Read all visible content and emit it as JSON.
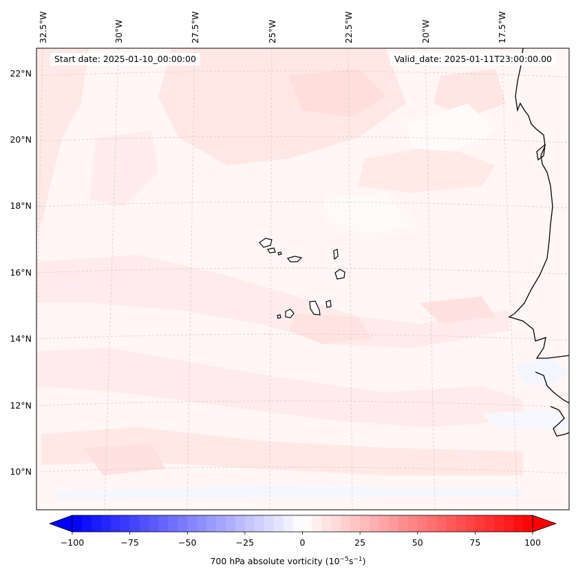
{
  "map": {
    "start_date_text": "Start date: 2025-01-10_00:00:00",
    "valid_date_text": "Valid_date: 2025-01-11T23:00:00.00",
    "lon_labels": [
      "32.5°W",
      "30°W",
      "27.5°W",
      "25°W",
      "22.5°W",
      "20°W",
      "17.5°W"
    ],
    "lat_labels": [
      "22°N",
      "20°N",
      "18°N",
      "16°N",
      "14°N",
      "12°N",
      "10°N"
    ],
    "extent": {
      "lon_min": -33.0,
      "lon_max": -16.0,
      "lat_min": 9.0,
      "lat_max": 22.8
    },
    "background_color": "#fff6f5",
    "coastline_color": "#000000"
  },
  "colorbar": {
    "ticks": [
      "−100",
      "−75",
      "−50",
      "−25",
      "0",
      "25",
      "50",
      "75",
      "100"
    ],
    "vmin": -100,
    "vmax": 100,
    "levels": 48,
    "colormap": "bwr",
    "extend": "both",
    "label_main": "700 hPa absolute vorticity (10",
    "label_exp1": "−5",
    "label_mid": "s",
    "label_exp2": "−1",
    "label_end": ")"
  }
}
